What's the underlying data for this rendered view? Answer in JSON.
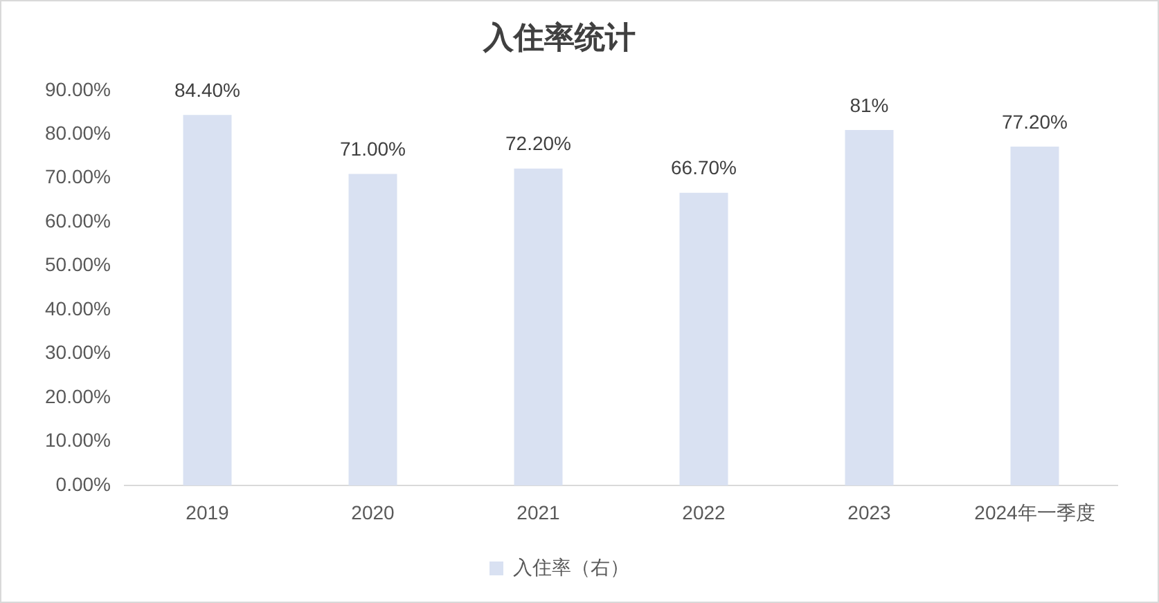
{
  "chart_data": {
    "type": "bar",
    "title": "入住率统计",
    "categories": [
      "2019",
      "2020",
      "2021",
      "2022",
      "2023",
      "2024年一季度"
    ],
    "series": [
      {
        "name": "入住率（右）",
        "color": "#d9e1f2",
        "values": [
          84.4,
          71,
          72.2,
          66.7,
          81,
          77.2
        ],
        "value_labels": [
          "84.40%",
          "71.00%",
          "72.20%",
          "66.70%",
          "81%",
          "77.20%"
        ]
      }
    ],
    "ylim": [
      0,
      90
    ],
    "yticks": [
      {
        "value": 0,
        "label": "0.00%"
      },
      {
        "value": 10,
        "label": "10.00%"
      },
      {
        "value": 20,
        "label": "20.00%"
      },
      {
        "value": 30,
        "label": "30.00%"
      },
      {
        "value": 40,
        "label": "40.00%"
      },
      {
        "value": 50,
        "label": "50.00%"
      },
      {
        "value": 60,
        "label": "60.00%"
      },
      {
        "value": 70,
        "label": "70.00%"
      },
      {
        "value": 80,
        "label": "80.00%"
      },
      {
        "value": 90,
        "label": "90.00%"
      }
    ],
    "legend": "bottom"
  }
}
